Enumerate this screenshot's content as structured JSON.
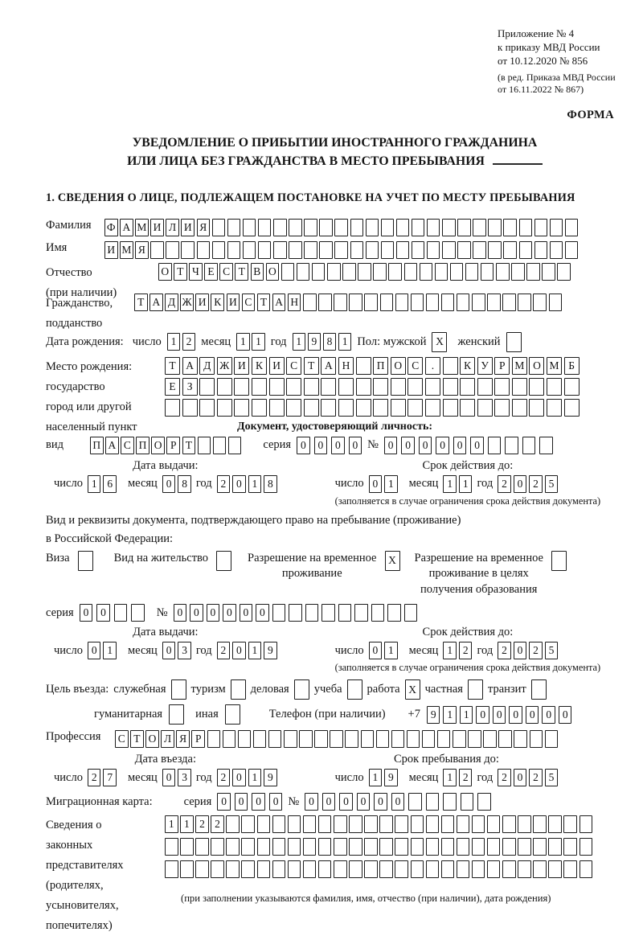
{
  "accent_color": "#1c1c1c",
  "header": {
    "annex_lines": [
      "Приложение № 4",
      "к приказу МВД России",
      "от 10.12.2020 № 856"
    ],
    "edition_lines": [
      "(в ред. Приказа МВД России",
      "от 16.11.2022 № 867)"
    ],
    "forma_label": "ФОРМА",
    "title_line1": "УВЕДОМЛЕНИЕ О ПРИБЫТИИ ИНОСТРАННОГО ГРАЖДАНИНА",
    "title_line2": "ИЛИ ЛИЦА БЕЗ ГРАЖДАНСТВА В МЕСТО ПРЕБЫВАНИЯ",
    "section1_heading": "1. СВЕДЕНИЯ О ЛИЦЕ, ПОДЛЕЖАЩЕМ ПОСТАНОВКЕ НА УЧЕТ ПО МЕСТУ ПРЕБЫВАНИЯ"
  },
  "person": {
    "surname": {
      "label": "Фамилия",
      "cells": {
        "value": "ФАМИЛИЯ",
        "total": 31
      }
    },
    "firstname": {
      "label": "Имя",
      "cells": {
        "value": "ИМЯ",
        "total": 31
      }
    },
    "patronymic": {
      "label": "Отчество",
      "note": "(при наличии)",
      "cells": {
        "value": "ОТЧЕСТВО",
        "total": 27
      }
    },
    "citizenship": {
      "label1": "Гражданство,",
      "label2": "подданство",
      "cells": {
        "value": "ТАДЖИКИСТАН",
        "total": 28
      }
    },
    "birth_date": {
      "label": "Дата рождения:",
      "day_label": "число",
      "day": {
        "value": "12",
        "total": 2
      },
      "month_label": "месяц",
      "month": {
        "value": "11",
        "total": 2
      },
      "year_label": "год",
      "year": {
        "value": "1981",
        "total": 4
      }
    },
    "sex": {
      "label": "Пол: мужской",
      "male_mark": "X",
      "female_label": "женский",
      "female_mark": ""
    },
    "birth_place": {
      "label_lines": [
        "Место рождения:",
        "государство",
        "город или другой",
        "населенный пункт"
      ],
      "row1": {
        "value": "ТАДЖИКИСТАН ПОС. КУРМОМБ",
        "total": 24
      },
      "row2": {
        "value": "ЕЗ",
        "total": 24
      },
      "row3": {
        "value": "",
        "total": 24
      }
    }
  },
  "identity_doc": {
    "heading": "Документ, удостоверяющий личность:",
    "kind_label": "вид",
    "kind": {
      "value": "ПАСПОРТ",
      "total": 10
    },
    "series_label": "серия",
    "series": {
      "value": "0000",
      "total": 4
    },
    "number_label": "№",
    "number": {
      "value": "000000",
      "total": 10
    },
    "issue": {
      "heading": "Дата выдачи:",
      "day_label": "число",
      "day": {
        "value": "16",
        "total": 2
      },
      "month_label": "месяц",
      "month": {
        "value": "08",
        "total": 2
      },
      "year_label": "год",
      "year": {
        "value": "2018",
        "total": 4
      }
    },
    "valid": {
      "heading": "Срок действия до:",
      "day_label": "число",
      "day": {
        "value": "01",
        "total": 2
      },
      "month_label": "месяц",
      "month": {
        "value": "11",
        "total": 2
      },
      "year_label": "год",
      "year": {
        "value": "2025",
        "total": 4
      },
      "note": "(заполняется в случае ограничения срока действия документа)"
    }
  },
  "residence_doc": {
    "heading1": "Вид и реквизиты документа, подтверждающего право на пребывание (проживание)",
    "heading2": "в Российской Федерации:",
    "options": [
      {
        "lines": [
          "Виза"
        ],
        "mark": ""
      },
      {
        "lines": [
          "Вид на жительство"
        ],
        "mark": ""
      },
      {
        "lines": [
          "Разрешение на временное",
          "проживание"
        ],
        "mark": "X"
      },
      {
        "lines": [
          "Разрешение на временное",
          "проживание в целях",
          "получения образования"
        ],
        "mark": ""
      }
    ],
    "series_label": "серия",
    "series": {
      "value": "00",
      "total": 4
    },
    "number_label": "№",
    "number": {
      "value": "000000",
      "total": 15
    },
    "issue": {
      "heading": "Дата выдачи:",
      "day_label": "число",
      "day": {
        "value": "01",
        "total": 2
      },
      "month_label": "месяц",
      "month": {
        "value": "03",
        "total": 2
      },
      "year_label": "год",
      "year": {
        "value": "2019",
        "total": 4
      }
    },
    "valid": {
      "heading": "Срок действия до:",
      "day_label": "число",
      "day": {
        "value": "01",
        "total": 2
      },
      "month_label": "месяц",
      "month": {
        "value": "12",
        "total": 2
      },
      "year_label": "год",
      "year": {
        "value": "2025",
        "total": 4
      },
      "note": "(заполняется в случае ограничения срока действия документа)"
    }
  },
  "visit": {
    "purpose_label": "Цель въезда: ",
    "purpose_row1": [
      {
        "label": "служебная",
        "mark": ""
      },
      {
        "label": "туризм",
        "mark": ""
      },
      {
        "label": "деловая",
        "mark": ""
      },
      {
        "label": "учеба",
        "mark": ""
      },
      {
        "label": "работа",
        "mark": "X"
      },
      {
        "label": "частная",
        "mark": ""
      },
      {
        "label": "транзит",
        "mark": ""
      }
    ],
    "purpose_row2": [
      {
        "label": "гуманитарная",
        "mark": ""
      },
      {
        "label": "иная",
        "mark": ""
      }
    ],
    "phone_label": "Телефон (при наличии)",
    "phone_prefix": "+7",
    "phone": {
      "value": "911000000",
      "total": 9
    },
    "profession_label": "Профессия",
    "profession": {
      "value": "СТОЛЯР",
      "total": 29
    },
    "entry": {
      "heading": "Дата въезда:",
      "day_label": "число",
      "day": {
        "value": "27",
        "total": 2
      },
      "month_label": "месяц",
      "month": {
        "value": "03",
        "total": 2
      },
      "year_label": "год",
      "year": {
        "value": "2019",
        "total": 4
      }
    },
    "stay": {
      "heading": "Срок пребывания до:",
      "day_label": "число",
      "day": {
        "value": "19",
        "total": 2
      },
      "month_label": "месяц",
      "month": {
        "value": "12",
        "total": 2
      },
      "year_label": "год",
      "year": {
        "value": "2025",
        "total": 4
      }
    },
    "migration_card": {
      "label": "Миграционная карта:",
      "series_label": "серия",
      "series": {
        "value": "0000",
        "total": 4
      },
      "number_label": "№",
      "number": {
        "value": "000000",
        "total": 11
      }
    }
  },
  "representatives": {
    "label_lines": [
      "Сведения о",
      "законных",
      "представителях",
      "(родителях,",
      "усыновителях,",
      "попечителях)"
    ],
    "row1": {
      "value": "1122",
      "total": 28
    },
    "row2": {
      "value": "",
      "total": 28
    },
    "row3": {
      "value": "",
      "total": 28
    },
    "note": "(при заполнении указываются фамилия, имя, отчество (при наличии), дата рождения)"
  }
}
